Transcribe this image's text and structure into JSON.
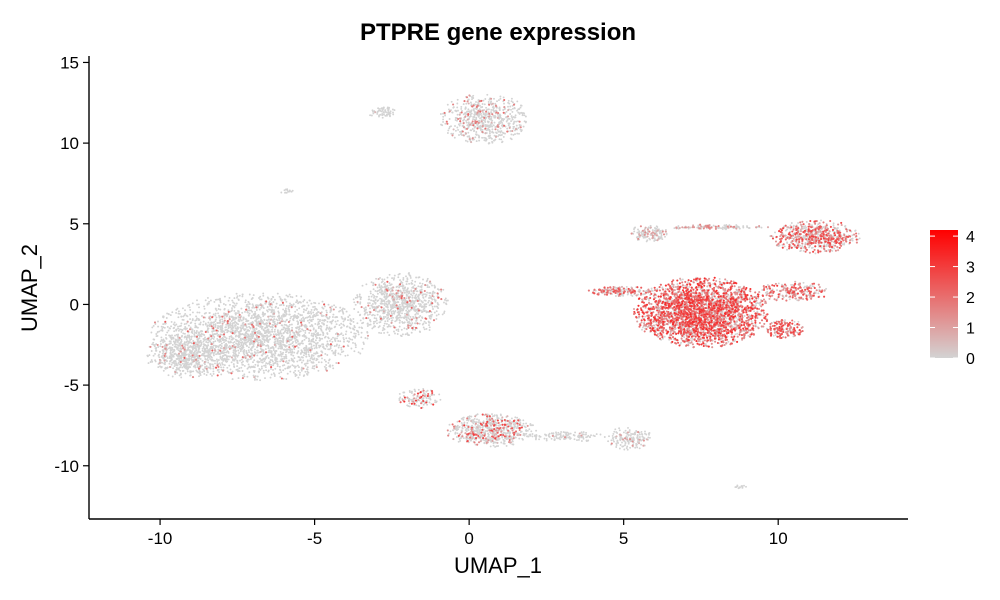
{
  "chart_data": {
    "type": "scatter",
    "title": "PTPRE gene expression",
    "xlabel": "UMAP_1",
    "ylabel": "UMAP_2",
    "xlim": [
      -12.3,
      14.2
    ],
    "ylim": [
      -13.3,
      15.4
    ],
    "xticks": [
      -10,
      -5,
      0,
      5,
      10
    ],
    "yticks": [
      -10,
      -5,
      0,
      5,
      10,
      15
    ],
    "grid": false,
    "point_color_scale": {
      "low": "#d3d3d3",
      "high": "#ff0000"
    },
    "legend": {
      "placement": "right",
      "type": "colorbar",
      "range": [
        0,
        4.2
      ],
      "ticks": [
        0,
        1,
        2,
        3,
        4
      ]
    },
    "clusters": [
      {
        "cx": -6.8,
        "cy": -2.0,
        "rx": 3.4,
        "ry": 2.6,
        "n": 2600,
        "expr_frac": 0.05,
        "expr_max": 2.5
      },
      {
        "cx": -2.2,
        "cy": 0.0,
        "rx": 1.5,
        "ry": 1.9,
        "n": 900,
        "expr_frac": 0.06,
        "expr_max": 2.5
      },
      {
        "cx": -9.2,
        "cy": -3.2,
        "rx": 1.2,
        "ry": 1.3,
        "n": 500,
        "expr_frac": 0.04,
        "expr_max": 2.0
      },
      {
        "cx": 0.5,
        "cy": 11.5,
        "rx": 1.4,
        "ry": 1.5,
        "n": 650,
        "expr_frac": 0.12,
        "expr_max": 2.2
      },
      {
        "cx": -2.8,
        "cy": 11.9,
        "rx": 0.45,
        "ry": 0.35,
        "n": 60,
        "expr_frac": 0.04,
        "expr_max": 1.5
      },
      {
        "cx": 0.7,
        "cy": -7.8,
        "rx": 1.4,
        "ry": 1.0,
        "n": 650,
        "expr_frac": 0.22,
        "expr_max": 3.0
      },
      {
        "cx": -1.6,
        "cy": -5.8,
        "rx": 0.7,
        "ry": 0.6,
        "n": 120,
        "expr_frac": 0.3,
        "expr_max": 3.2
      },
      {
        "cx": 3.2,
        "cy": -8.2,
        "rx": 1.2,
        "ry": 0.3,
        "n": 120,
        "expr_frac": 0.05,
        "expr_max": 1.5
      },
      {
        "cx": 5.2,
        "cy": -8.3,
        "rx": 0.7,
        "ry": 0.7,
        "n": 160,
        "expr_frac": 0.08,
        "expr_max": 1.5
      },
      {
        "cx": 7.5,
        "cy": -0.5,
        "rx": 2.1,
        "ry": 2.1,
        "n": 2800,
        "expr_frac": 0.75,
        "expr_max": 3.4
      },
      {
        "cx": 4.9,
        "cy": 0.8,
        "rx": 1.0,
        "ry": 0.3,
        "n": 180,
        "expr_frac": 0.55,
        "expr_max": 2.8
      },
      {
        "cx": 10.2,
        "cy": -1.5,
        "rx": 0.6,
        "ry": 0.6,
        "n": 160,
        "expr_frac": 0.75,
        "expr_max": 3.0
      },
      {
        "cx": 10.5,
        "cy": 0.8,
        "rx": 1.1,
        "ry": 0.6,
        "n": 220,
        "expr_frac": 0.7,
        "expr_max": 3.0
      },
      {
        "cx": 11.2,
        "cy": 4.2,
        "rx": 1.4,
        "ry": 1.0,
        "n": 650,
        "expr_frac": 0.5,
        "expr_max": 3.0
      },
      {
        "cx": 8.0,
        "cy": 4.8,
        "rx": 1.6,
        "ry": 0.15,
        "n": 120,
        "expr_frac": 0.25,
        "expr_max": 1.8
      },
      {
        "cx": 5.8,
        "cy": 4.4,
        "rx": 0.6,
        "ry": 0.5,
        "n": 140,
        "expr_frac": 0.2,
        "expr_max": 1.5
      },
      {
        "cx": -5.9,
        "cy": 7.0,
        "rx": 0.2,
        "ry": 0.15,
        "n": 14,
        "expr_frac": 0.0,
        "expr_max": 0.5
      },
      {
        "cx": 8.8,
        "cy": -11.3,
        "rx": 0.2,
        "ry": 0.1,
        "n": 14,
        "expr_frac": 0.0,
        "expr_max": 0.5
      }
    ]
  }
}
